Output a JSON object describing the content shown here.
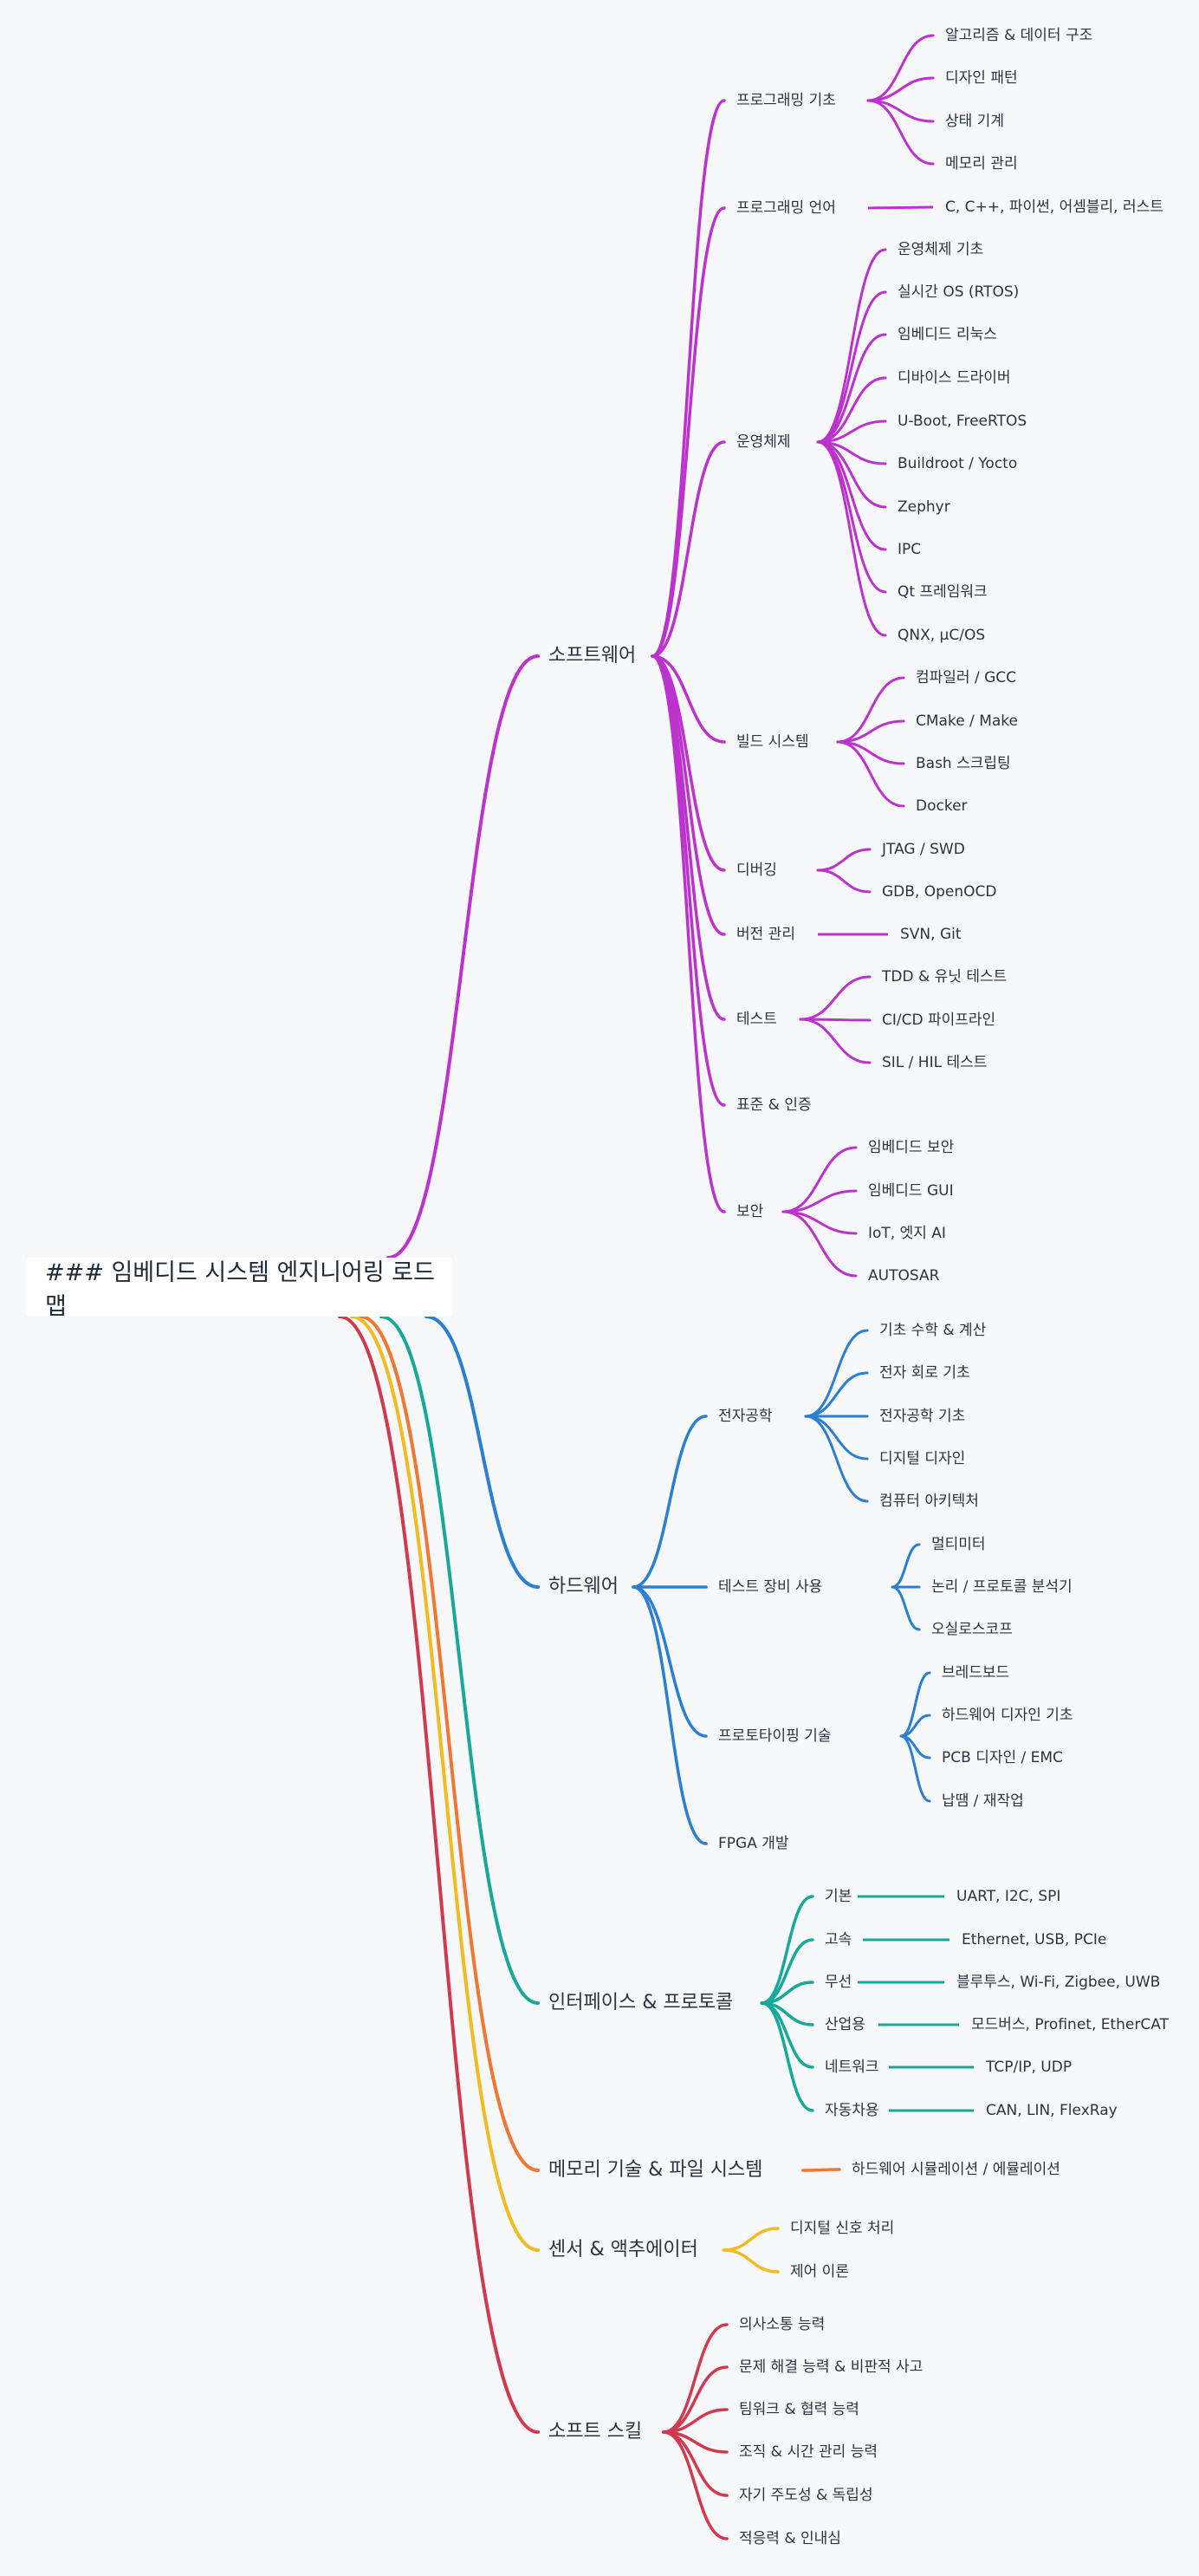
{
  "root": {
    "label": "### 임베디드 시스템 엔지니어링 로드맵"
  },
  "branches": [
    {
      "label": "소프트웨어",
      "color": "#bb33cc",
      "children": [
        {
          "label": "프로그래밍 기초",
          "children": [
            "알고리즘 & 데이터 구조",
            "디자인 패턴",
            "상태 기계",
            "메모리 관리"
          ]
        },
        {
          "label": "프로그래밍 언어",
          "children": [
            "C, C++, 파이썬, 어셈블리, 러스트"
          ]
        },
        {
          "label": "운영체제",
          "children": [
            "운영체제 기초",
            "실시간 OS (RTOS)",
            "임베디드 리눅스",
            "디바이스 드라이버",
            "U-Boot, FreeRTOS",
            "Buildroot / Yocto",
            "Zephyr",
            "IPC",
            "Qt 프레임워크",
            "QNX, μC/OS"
          ]
        },
        {
          "label": "빌드 시스템",
          "children": [
            "컴파일러 / GCC",
            "CMake / Make",
            "Bash 스크립팅",
            "Docker"
          ]
        },
        {
          "label": "디버깅",
          "children": [
            "JTAG / SWD",
            "GDB, OpenOCD"
          ]
        },
        {
          "label": "버전 관리",
          "children": [
            "SVN, Git"
          ]
        },
        {
          "label": "테스트",
          "children": [
            "TDD & 유닛 테스트",
            "CI/CD 파이프라인",
            "SIL / HIL 테스트"
          ]
        },
        {
          "label": "표준 & 인증",
          "children": []
        },
        {
          "label": "보안",
          "children": [
            "임베디드 보안",
            "임베디드 GUI",
            "IoT, 엣지 AI",
            "AUTOSAR"
          ]
        }
      ]
    },
    {
      "label": "하드웨어",
      "color": "#2b7fd0",
      "children": [
        {
          "label": "전자공학",
          "children": [
            "기초 수학 & 계산",
            "전자 회로 기초",
            "전자공학 기초",
            "디지털 디자인",
            "컴퓨터 아키텍처"
          ]
        },
        {
          "label": "테스트 장비 사용",
          "children": [
            "멀티미터",
            "논리 / 프로토콜 분석기",
            "오실로스코프"
          ]
        },
        {
          "label": "프로토타이핑 기술",
          "children": [
            "브레드보드",
            "하드웨어 디자인 기초",
            "PCB 디자인 / EMC",
            "납땜 / 재작업"
          ]
        },
        {
          "label": "FPGA 개발",
          "children": []
        }
      ]
    },
    {
      "label": "인터페이스 & 프로토콜",
      "color": "#17a89a",
      "children": [
        {
          "label": "기본",
          "children": [
            "UART, I2C, SPI"
          ]
        },
        {
          "label": "고속",
          "children": [
            "Ethernet, USB, PCIe"
          ]
        },
        {
          "label": "무선",
          "children": [
            "블루투스, Wi-Fi, Zigbee, UWB"
          ]
        },
        {
          "label": "산업용",
          "children": [
            "모드버스, Profinet, EtherCAT"
          ]
        },
        {
          "label": "네트워크",
          "children": [
            "TCP/IP, UDP"
          ]
        },
        {
          "label": "자동차용",
          "children": [
            "CAN, LIN, FlexRay"
          ]
        }
      ]
    },
    {
      "label": "메모리 기술 & 파일 시스템",
      "color": "#ee7733",
      "children": [
        {
          "label": "하드웨어 시뮬레이션 / 에뮬레이션",
          "children": []
        }
      ]
    },
    {
      "label": "센서 & 액추에이터",
      "color": "#f2bb22",
      "children": [
        {
          "label": "디지털 신호 처리",
          "children": []
        },
        {
          "label": "제어 이론",
          "children": []
        }
      ]
    },
    {
      "label": "소프트 스킬",
      "color": "#d03a4e",
      "children": [
        {
          "label": "의사소통 능력",
          "children": []
        },
        {
          "label": "문제 해결 능력 & 비판적 사고",
          "children": []
        },
        {
          "label": "팀워크 & 협력 능력",
          "children": []
        },
        {
          "label": "조직 & 시간 관리 능력",
          "children": []
        },
        {
          "label": "자기 주도성 & 독립성",
          "children": []
        },
        {
          "label": "적응력 & 인내심",
          "children": []
        }
      ]
    }
  ]
}
